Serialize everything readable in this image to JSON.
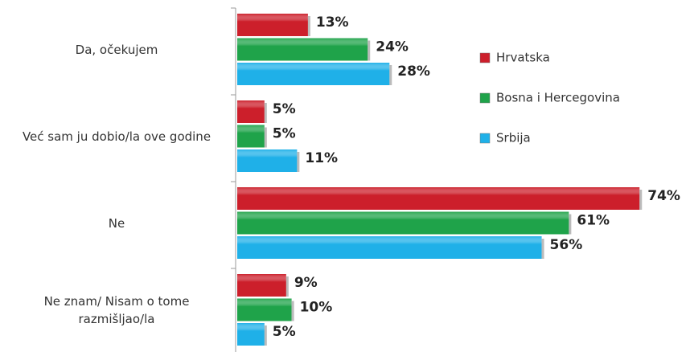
{
  "chart_data": {
    "type": "bar",
    "orientation": "horizontal",
    "categories": [
      "Da, očekujem",
      "Već sam ju dobio/la ove godine",
      "Ne",
      "Ne znam/ Nisam o tome razmišljao/la"
    ],
    "series": [
      {
        "name": "Hrvatska",
        "color": "#cc1f2b",
        "values": [
          13,
          5,
          74,
          9
        ],
        "value_labels": [
          "13%",
          "5%",
          "74%",
          "9%"
        ]
      },
      {
        "name": "Bosna i Hercegovina",
        "color": "#1fa34a",
        "values": [
          24,
          5,
          61,
          10
        ],
        "value_labels": [
          "24%",
          "5%",
          "61%",
          "10%"
        ]
      },
      {
        "name": "Srbija",
        "color": "#1fb0e8",
        "values": [
          28,
          11,
          56,
          5
        ],
        "value_labels": [
          "28%",
          "11%",
          "56%",
          "5%"
        ]
      }
    ],
    "legend": "right"
  }
}
